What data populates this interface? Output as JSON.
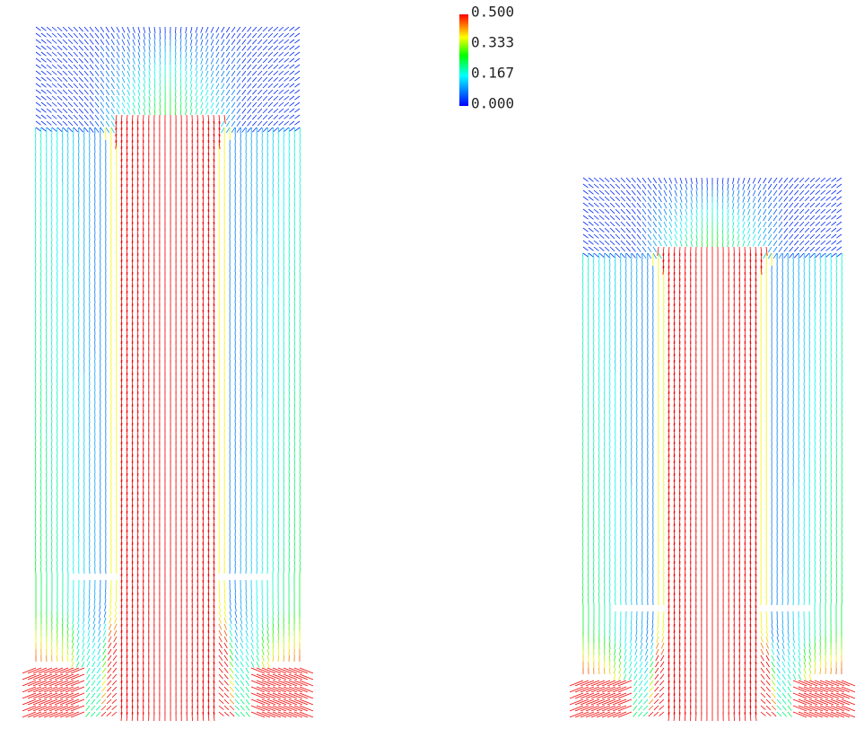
{
  "colorbar": {
    "ticks": [
      {
        "value": 0.5,
        "label": "0.500"
      },
      {
        "value": 0.333,
        "label": "0.333"
      },
      {
        "value": 0.167,
        "label": "0.167"
      },
      {
        "value": 0,
        "label": "0.000"
      }
    ]
  }
}
